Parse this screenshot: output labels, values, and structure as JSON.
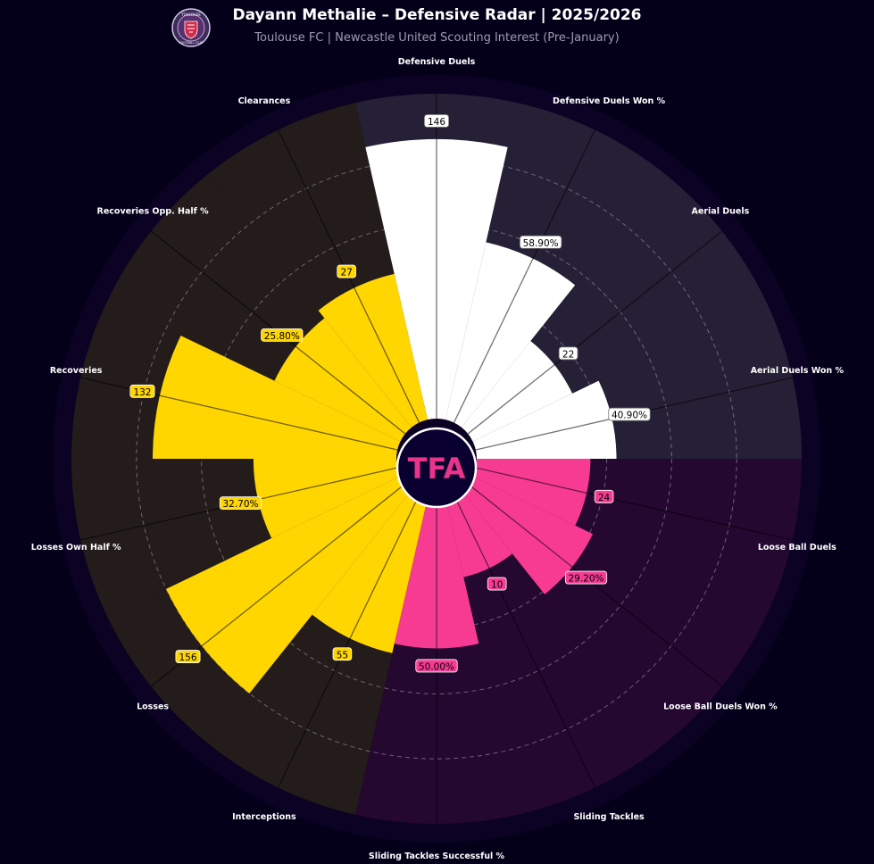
{
  "header": {
    "title": "Dayann Methalie – Defensive Radar | 2025/2026",
    "subtitle": "Toulouse FC | Newcastle United Scouting Interest (Pre-January)",
    "crest_top": "TOULOUSE",
    "crest_bottom": "FOOTBALL CLUB"
  },
  "center_logo": {
    "text": "TFA",
    "color": "#e8348a"
  },
  "colors": {
    "background": "#05001a",
    "group_white": "#ffffff",
    "group_pink": "#f73b93",
    "group_yellow": "#ffd600",
    "bg_white_sector": "#262036",
    "bg_pink_sector": "#250830",
    "bg_yellow_sector": "#231c1a"
  },
  "chart_data": {
    "type": "radar",
    "title": "Dayann Methalie – Defensive Radar | 2025/2026",
    "rlim": [
      0,
      100
    ],
    "grid": true,
    "metrics": [
      {
        "label": "Defensive Duels",
        "value_label": "146",
        "percentile": 86,
        "group": "white"
      },
      {
        "label": "Defensive Duels Won %",
        "value_label": "58.90%",
        "percentile": 56,
        "group": "white"
      },
      {
        "label": "Aerial Duels",
        "value_label": "22",
        "percentile": 34,
        "group": "white"
      },
      {
        "label": "Aerial Duels Won %",
        "value_label": "40.90%",
        "percentile": 43,
        "group": "white"
      },
      {
        "label": "Loose Ball Duels",
        "value_label": "24",
        "percentile": 35,
        "group": "pink"
      },
      {
        "label": "Loose Ball Duels Won %",
        "value_label": "29.20%",
        "percentile": 41,
        "group": "pink"
      },
      {
        "label": "Sliding Tackles",
        "value_label": "10",
        "percentile": 25,
        "group": "pink"
      },
      {
        "label": "Sliding Tackles Successful %",
        "value_label": "50.00%",
        "percentile": 46,
        "group": "pink"
      },
      {
        "label": "Interceptions",
        "value_label": "55",
        "percentile": 49,
        "group": "yellow"
      },
      {
        "label": "Losses",
        "value_label": "156",
        "percentile": 80,
        "group": "yellow"
      },
      {
        "label": "Losses Own Half %",
        "value_label": "32.70%",
        "percentile": 44,
        "group": "yellow"
      },
      {
        "label": "Recoveries",
        "value_label": "132",
        "percentile": 75,
        "group": "yellow"
      },
      {
        "label": "Recoveries Opp. Half %",
        "value_label": "25.80%",
        "percentile": 43,
        "group": "yellow"
      },
      {
        "label": "Clearances",
        "value_label": "27",
        "percentile": 46,
        "group": "yellow"
      }
    ]
  }
}
